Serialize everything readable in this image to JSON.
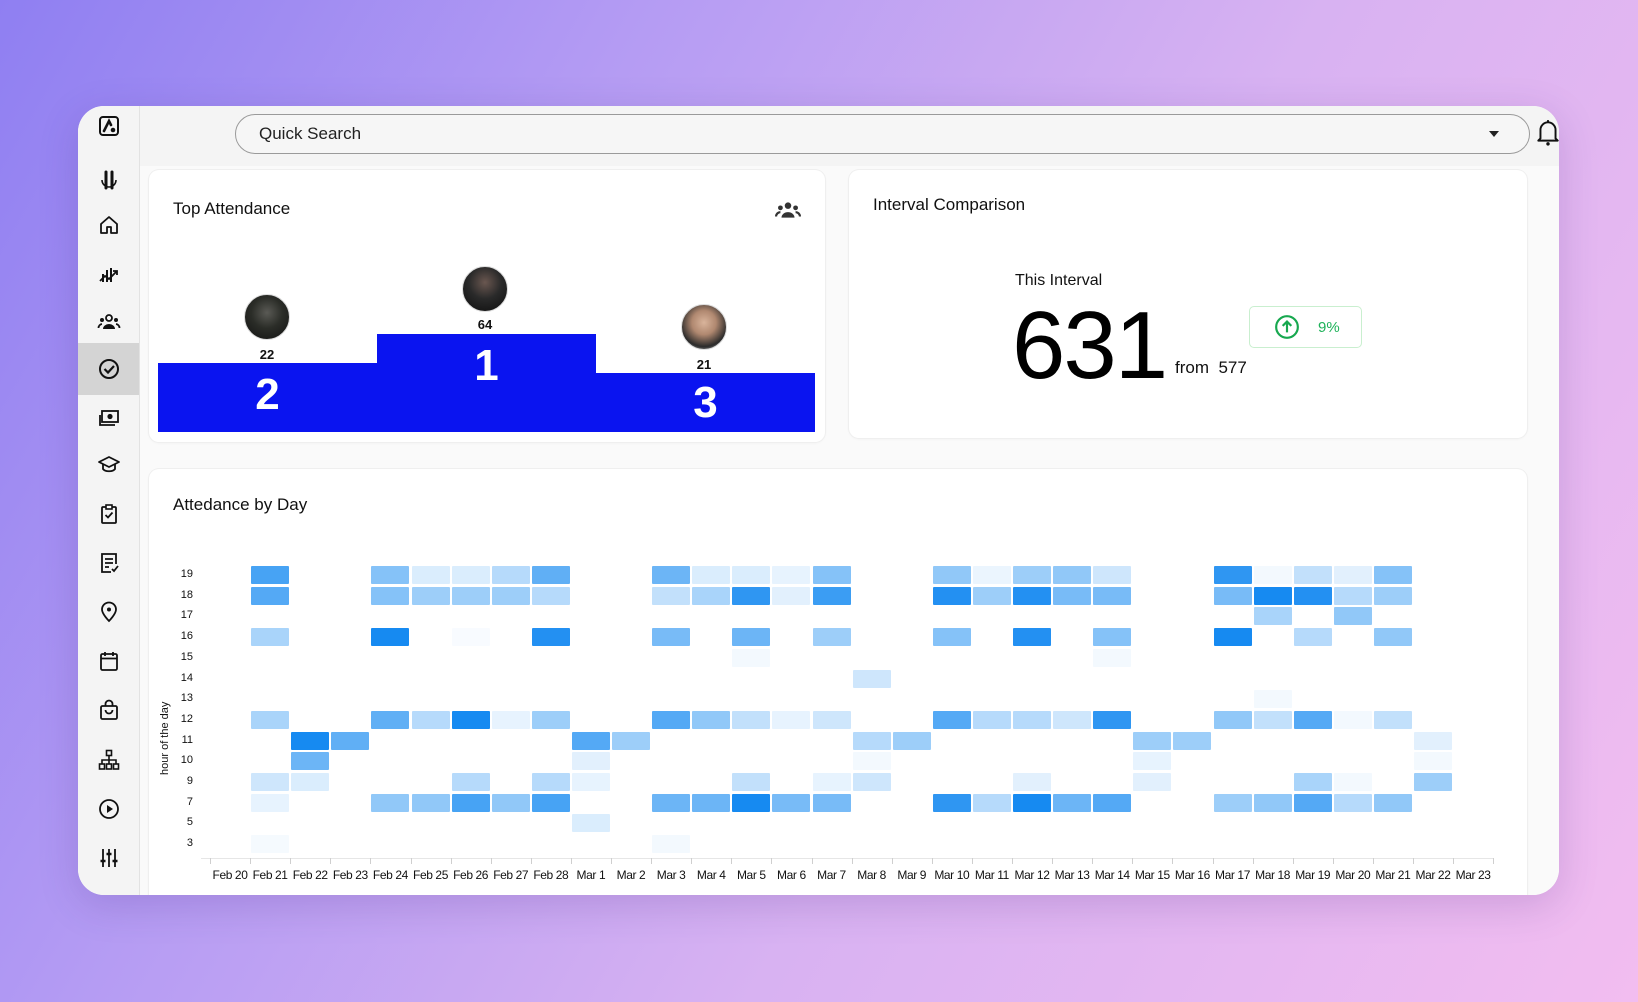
{
  "header": {
    "search_label": "Quick Search",
    "notifications_icon": "bell-icon",
    "profile_icon": "user-avatar"
  },
  "sidebar": {
    "items": [
      {
        "name": "app-logo",
        "icon": "logo-icon"
      },
      {
        "name": "brand",
        "icon": "brand-mark-icon"
      },
      {
        "name": "home",
        "icon": "home-icon"
      },
      {
        "name": "analytics",
        "icon": "chart-trend-icon"
      },
      {
        "name": "members",
        "icon": "group-icon"
      },
      {
        "name": "attendance",
        "icon": "check-circle-icon",
        "active": true
      },
      {
        "name": "payments",
        "icon": "cash-icon"
      },
      {
        "name": "classes",
        "icon": "graduation-cap-icon"
      },
      {
        "name": "tasks",
        "icon": "clipboard-check-icon"
      },
      {
        "name": "reports",
        "icon": "document-check-icon"
      },
      {
        "name": "locations",
        "icon": "map-pin-icon"
      },
      {
        "name": "calendar",
        "icon": "calendar-icon"
      },
      {
        "name": "store",
        "icon": "shopping-bag-icon"
      },
      {
        "name": "organization",
        "icon": "org-chart-icon"
      },
      {
        "name": "videos",
        "icon": "play-circle-icon"
      },
      {
        "name": "settings",
        "icon": "sliders-icon"
      }
    ]
  },
  "top_attendance": {
    "title": "Top Attendance",
    "icon": "group-icon",
    "podium": [
      {
        "rank": "2",
        "count": "22"
      },
      {
        "rank": "1",
        "count": "64"
      },
      {
        "rank": "3",
        "count": "21"
      }
    ],
    "podium_color": "#0a14f0"
  },
  "interval_comparison": {
    "title": "Interval Comparison",
    "label": "This Interval",
    "value": "631",
    "from_label": "from",
    "previous": "577",
    "change": "9%",
    "change_direction": "up",
    "change_color": "#1fb25a"
  },
  "chart_data": {
    "type": "heatmap",
    "title": "Attedance by Day",
    "xlabel": "",
    "ylabel": "hour of the day",
    "x": [
      "Feb 20",
      "Feb 21",
      "Feb 22",
      "Feb 23",
      "Feb 24",
      "Feb 25",
      "Feb 26",
      "Feb 27",
      "Feb 28",
      "Mar 1",
      "Mar 2",
      "Mar 3",
      "Mar 4",
      "Mar 5",
      "Mar 6",
      "Mar 7",
      "Mar 8",
      "Mar 9",
      "Mar 10",
      "Mar 11",
      "Mar 12",
      "Mar 13",
      "Mar 14",
      "Mar 15",
      "Mar 16",
      "Mar 17",
      "Mar 18",
      "Mar 19",
      "Mar 20",
      "Mar 21",
      "Mar 22",
      "Mar 23"
    ],
    "y": [
      "19",
      "18",
      "17",
      "16",
      "15",
      "14",
      "13",
      "12",
      "11",
      "10",
      "9",
      "7",
      "5",
      "3"
    ],
    "color_scale": [
      "#ffffff",
      "#0a84f0"
    ],
    "values_note": "intensity 0-1, rows ordered as y",
    "values": [
      [
        0,
        0.75,
        0,
        0,
        0.5,
        0.15,
        0.15,
        0.3,
        0.65,
        0,
        0,
        0.6,
        0.15,
        0.15,
        0.1,
        0.5,
        0,
        0,
        0.45,
        0.08,
        0.4,
        0.45,
        0.2,
        0,
        0,
        0.85,
        0.05,
        0.25,
        0.12,
        0.5,
        0,
        0
      ],
      [
        0,
        0.7,
        0,
        0,
        0.5,
        0.4,
        0.4,
        0.4,
        0.3,
        0,
        0,
        0.25,
        0.35,
        0.85,
        0.12,
        0.8,
        0,
        0,
        0.9,
        0.4,
        0.9,
        0.55,
        0.55,
        0,
        0,
        0.55,
        0.95,
        0.9,
        0.3,
        0.4,
        0,
        0
      ],
      [
        0,
        0,
        0,
        0,
        0,
        0,
        0,
        0,
        0,
        0,
        0,
        0,
        0,
        0,
        0,
        0,
        0,
        0,
        0,
        0,
        0,
        0,
        0,
        0,
        0,
        0,
        0.35,
        0,
        0.45,
        0,
        0,
        0
      ],
      [
        0,
        0.35,
        0,
        0,
        0.95,
        0,
        0.03,
        0,
        0.9,
        0,
        0,
        0.55,
        0,
        0.6,
        0,
        0.4,
        0,
        0,
        0.5,
        0,
        0.9,
        0,
        0.5,
        0,
        0,
        0.95,
        0,
        0.3,
        0,
        0.45,
        0,
        0
      ],
      [
        0,
        0,
        0,
        0,
        0,
        0,
        0,
        0,
        0,
        0,
        0,
        0,
        0,
        0.05,
        0,
        0,
        0,
        0,
        0,
        0,
        0,
        0,
        0.05,
        0,
        0,
        0,
        0,
        0,
        0,
        0,
        0,
        0
      ],
      [
        0,
        0,
        0,
        0,
        0,
        0,
        0,
        0,
        0,
        0,
        0,
        0,
        0,
        0,
        0,
        0,
        0.2,
        0,
        0,
        0,
        0,
        0,
        0,
        0,
        0,
        0,
        0,
        0,
        0,
        0,
        0,
        0
      ],
      [
        0,
        0,
        0,
        0,
        0,
        0,
        0,
        0,
        0,
        0,
        0,
        0,
        0,
        0,
        0,
        0,
        0,
        0,
        0,
        0,
        0,
        0,
        0,
        0,
        0,
        0,
        0.05,
        0,
        0,
        0,
        0,
        0
      ],
      [
        0,
        0.35,
        0,
        0,
        0.65,
        0.3,
        0.95,
        0.1,
        0.4,
        0,
        0,
        0.7,
        0.45,
        0.25,
        0.1,
        0.2,
        0,
        0,
        0.7,
        0.3,
        0.3,
        0.2,
        0.85,
        0,
        0,
        0.45,
        0.25,
        0.7,
        0.05,
        0.25,
        0,
        0
      ],
      [
        0,
        0,
        0.95,
        0.65,
        0,
        0,
        0,
        0,
        0,
        0.7,
        0.4,
        0,
        0,
        0,
        0,
        0,
        0.3,
        0.4,
        0,
        0,
        0,
        0,
        0,
        0.4,
        0.4,
        0,
        0,
        0,
        0,
        0,
        0.12,
        0
      ],
      [
        0,
        0,
        0.6,
        0,
        0,
        0,
        0,
        0,
        0,
        0.12,
        0,
        0,
        0,
        0,
        0,
        0,
        0.05,
        0,
        0,
        0,
        0,
        0,
        0,
        0.1,
        0,
        0,
        0,
        0,
        0,
        0,
        0.05,
        0
      ],
      [
        0,
        0.2,
        0.15,
        0,
        0,
        0,
        0.3,
        0,
        0.3,
        0.1,
        0,
        0,
        0,
        0.25,
        0,
        0.1,
        0.2,
        0,
        0,
        0,
        0.12,
        0,
        0,
        0.12,
        0,
        0,
        0,
        0.35,
        0.05,
        0,
        0.4,
        0
      ],
      [
        0,
        0.1,
        0,
        0,
        0.45,
        0.45,
        0.75,
        0.45,
        0.75,
        0,
        0,
        0.6,
        0.6,
        0.95,
        0.55,
        0.55,
        0,
        0,
        0.85,
        0.3,
        0.95,
        0.6,
        0.7,
        0,
        0,
        0.4,
        0.45,
        0.7,
        0.3,
        0.45,
        0,
        0
      ],
      [
        0,
        0,
        0,
        0,
        0,
        0,
        0,
        0,
        0,
        0.15,
        0,
        0,
        0,
        0,
        0,
        0,
        0,
        0,
        0,
        0,
        0,
        0,
        0,
        0,
        0,
        0,
        0,
        0,
        0,
        0,
        0,
        0
      ],
      [
        0,
        0.04,
        0,
        0,
        0,
        0,
        0,
        0,
        0,
        0,
        0,
        0.05,
        0,
        0,
        0,
        0,
        0,
        0,
        0,
        0,
        0,
        0,
        0,
        0,
        0,
        0,
        0,
        0,
        0,
        0,
        0,
        0
      ]
    ],
    "grid": false,
    "legend": "none"
  },
  "heatmap_card": {
    "title": "Attedance by Day",
    "y_axis_title": "hour of the day"
  }
}
